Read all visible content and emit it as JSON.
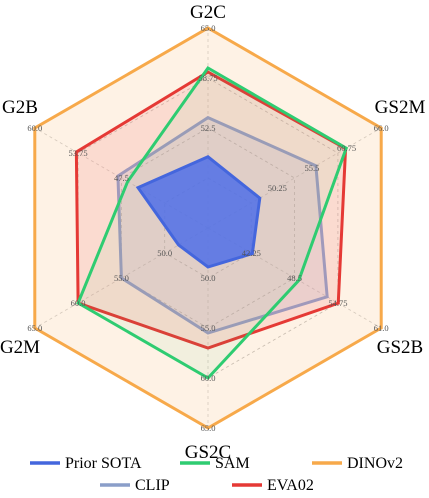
{
  "chart_data": {
    "type": "radar",
    "axes": [
      "G2C",
      "GS2M",
      "GS2B",
      "GS2C",
      "G2M",
      "G2B"
    ],
    "ticks": [
      [
        "52.5",
        "58.75",
        "65.0"
      ],
      [
        "50.25",
        "55.5",
        "60.75",
        "66.0"
      ],
      [
        "42.25",
        "48.5",
        "54.75",
        "61.0"
      ],
      [
        "50.0",
        "55.0",
        "60.0",
        "65.0"
      ],
      [
        "50.0",
        "55.0",
        "60.0",
        "65.0"
      ],
      [
        "47.5",
        "53.75",
        "60.0"
      ]
    ],
    "ranges": [
      [
        40.0,
        65.0
      ],
      [
        39.75,
        66.0
      ],
      [
        36.0,
        61.0
      ],
      [
        45.0,
        65.0
      ],
      [
        45.0,
        65.0
      ],
      [
        35.0,
        60.0
      ]
    ],
    "series": [
      {
        "name": "Prior SOTA",
        "color": "#4466dd",
        "fill": "#4f6ee8",
        "fill_opacity": 0.85,
        "values": [
          48.9,
          47.6,
          42.4,
          48.9,
          48.4,
          45.1
        ]
      },
      {
        "name": "SAM",
        "color": "#2ecc71",
        "fill": "#2ecc71",
        "fill_opacity": 0.06,
        "values": [
          60.0,
          60.7,
          49.1,
          60.0,
          60.0,
          46.6
        ]
      },
      {
        "name": "DINOv2",
        "color": "#f7a94a",
        "fill": "#f9c58a",
        "fill_opacity": 0.22,
        "values": [
          65.0,
          66.0,
          61.0,
          65.0,
          65.0,
          60.0
        ]
      },
      {
        "name": "CLIP",
        "color": "#8a9ec9",
        "fill": "#8a9ec9",
        "fill_opacity": 0.18,
        "values": [
          53.8,
          56.1,
          53.2,
          55.5,
          55.0,
          48.0
        ]
      },
      {
        "name": "EVA02",
        "color": "#e53935",
        "fill": "#f08a8a",
        "fill_opacity": 0.22,
        "values": [
          59.5,
          60.6,
          54.8,
          57.0,
          60.0,
          54.0
        ]
      }
    ],
    "legend_rows": [
      [
        "Prior SOTA",
        "SAM",
        "DINOv2"
      ],
      [
        "CLIP",
        "EVA02"
      ]
    ],
    "grid": true,
    "legend_position": "bottom"
  }
}
